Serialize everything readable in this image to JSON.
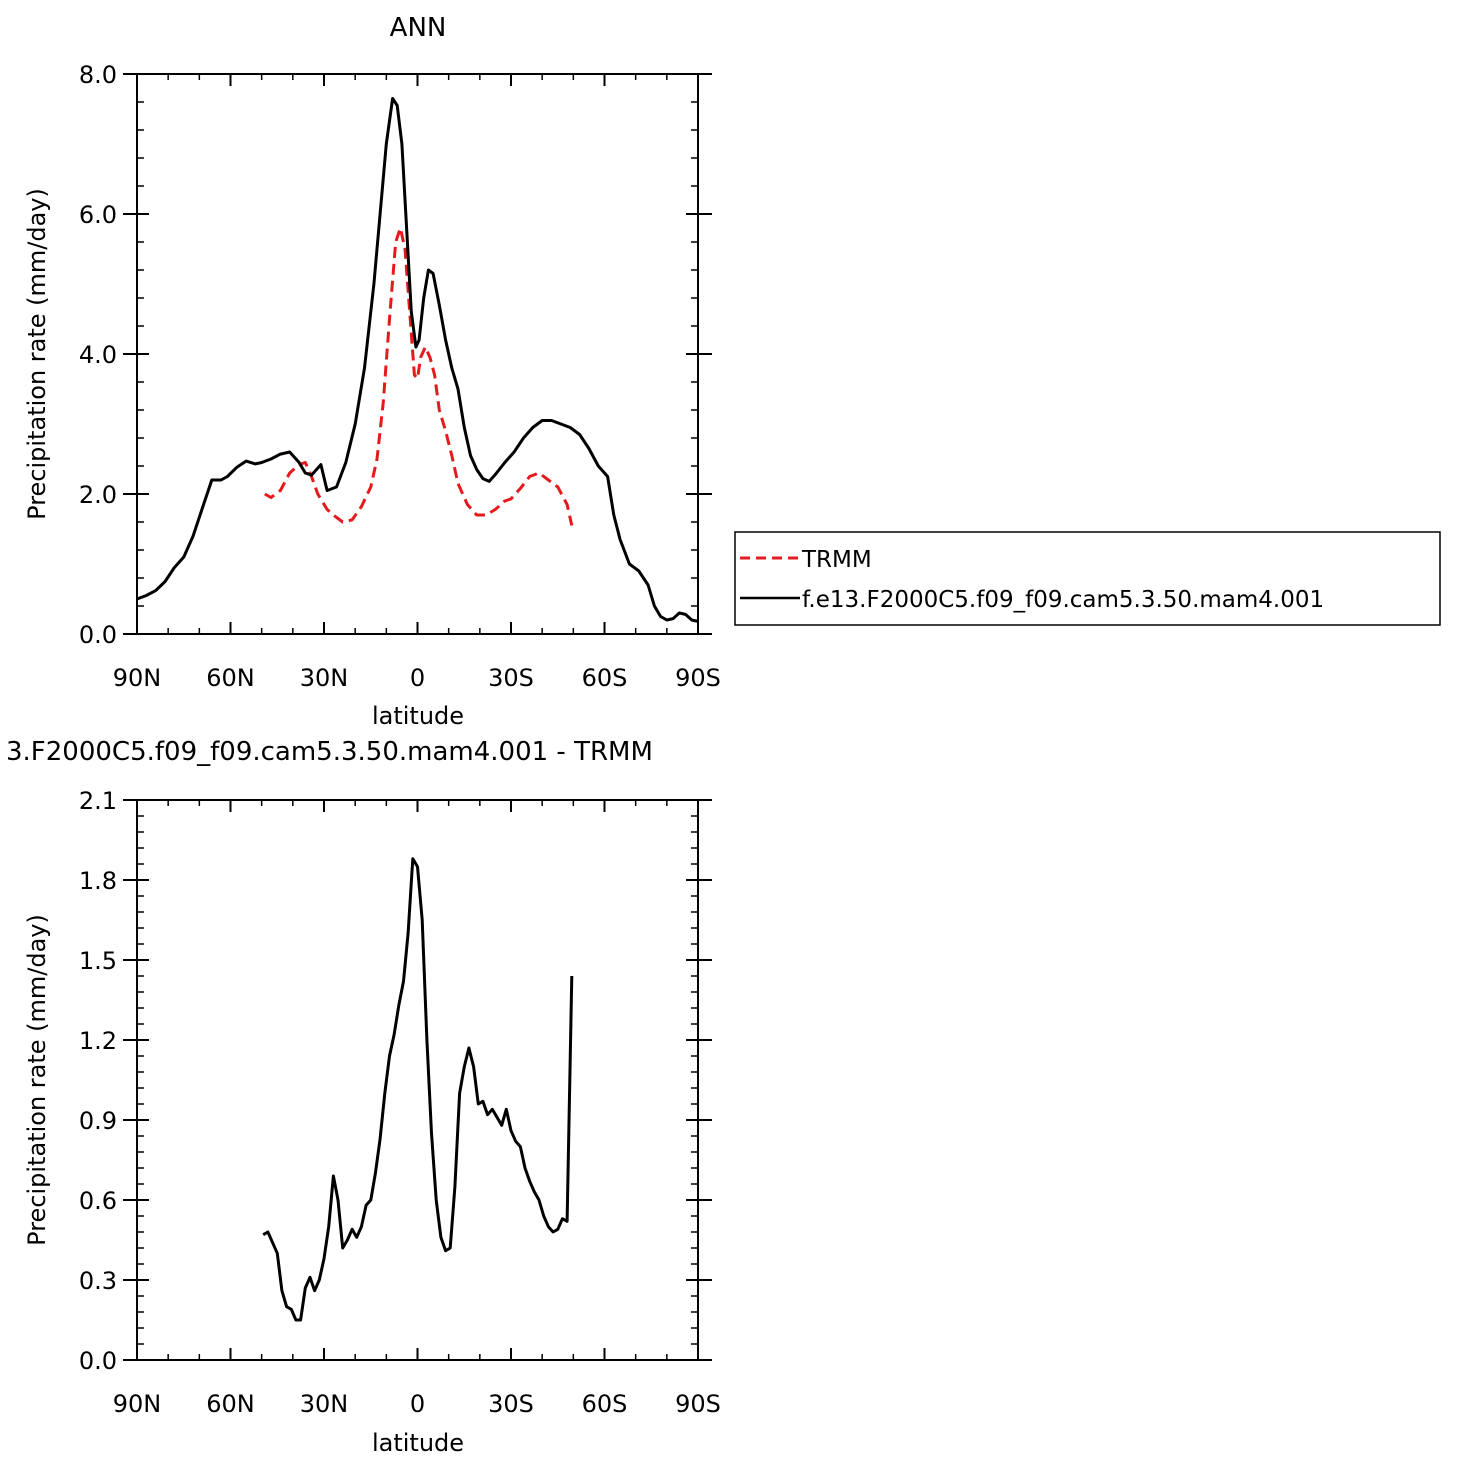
{
  "chart_data": [
    {
      "type": "line",
      "title": "ANN",
      "xlabel": "latitude",
      "ylabel": "Precipitation rate (mm/day)",
      "xlim": [
        90,
        -90
      ],
      "ylim": [
        0,
        8
      ],
      "xticks": [
        {
          "value": 90,
          "label": "90N"
        },
        {
          "value": 60,
          "label": "60N"
        },
        {
          "value": 30,
          "label": "30N"
        },
        {
          "value": 0,
          "label": "0"
        },
        {
          "value": -30,
          "label": "30S"
        },
        {
          "value": -60,
          "label": "60S"
        },
        {
          "value": -90,
          "label": "90S"
        }
      ],
      "yticks": [
        {
          "value": 0,
          "label": "0.0"
        },
        {
          "value": 2,
          "label": "2.0"
        },
        {
          "value": 4,
          "label": "4.0"
        },
        {
          "value": 6,
          "label": "6.0"
        },
        {
          "value": 8,
          "label": "8.0"
        }
      ],
      "legend_placement": "right",
      "series": [
        {
          "name": "TRMM",
          "color": "#e41a1c",
          "dash": "dashed",
          "x": [
            49,
            47,
            44,
            41,
            38,
            36,
            34,
            32,
            29,
            27,
            24,
            21,
            18,
            15,
            13,
            11,
            9,
            7,
            5.5,
            4,
            2.5,
            1,
            0,
            -1,
            -2.5,
            -4,
            -5.5,
            -7,
            -9,
            -11,
            -13,
            -16,
            -19,
            -22,
            -25,
            -28,
            -30,
            -33,
            -36,
            -39,
            -42,
            -45,
            -48,
            -49.5
          ],
          "values": [
            2.0,
            1.95,
            2.05,
            2.3,
            2.42,
            2.45,
            2.25,
            2.0,
            1.78,
            1.7,
            1.6,
            1.63,
            1.82,
            2.1,
            2.5,
            3.3,
            4.5,
            5.6,
            5.8,
            5.5,
            4.6,
            3.7,
            3.65,
            3.95,
            4.1,
            3.95,
            3.7,
            3.2,
            2.9,
            2.55,
            2.15,
            1.85,
            1.7,
            1.7,
            1.78,
            1.9,
            1.93,
            2.08,
            2.25,
            2.3,
            2.2,
            2.1,
            1.85,
            1.55
          ]
        },
        {
          "name": "f.e13.F2000C5.f09_f09.cam5.3.50.mam4.001",
          "color": "#000000",
          "dash": "solid",
          "x": [
            90,
            87,
            84,
            81,
            78,
            75,
            72,
            69,
            66,
            63,
            61,
            58,
            55,
            52,
            50,
            47,
            44,
            41,
            38,
            36,
            34,
            31,
            29,
            26,
            23,
            20,
            17,
            14,
            12,
            10,
            8,
            6.5,
            5,
            3.5,
            2,
            0.5,
            -0.5,
            -2,
            -3.5,
            -5,
            -7,
            -9,
            -11,
            -13,
            -15,
            -17,
            -19,
            -21,
            -23,
            -25,
            -28,
            -31,
            -34,
            -37,
            -40,
            -43,
            -46,
            -49,
            -52,
            -55,
            -58,
            -61,
            -63,
            -65,
            -68,
            -71,
            -74,
            -76,
            -78,
            -80,
            -82,
            -84,
            -86,
            -88,
            -90
          ],
          "values": [
            0.5,
            0.55,
            0.62,
            0.75,
            0.95,
            1.1,
            1.4,
            1.8,
            2.2,
            2.2,
            2.25,
            2.38,
            2.47,
            2.43,
            2.45,
            2.5,
            2.57,
            2.6,
            2.45,
            2.3,
            2.27,
            2.42,
            2.05,
            2.1,
            2.45,
            3.0,
            3.8,
            5.0,
            6.0,
            7.0,
            7.65,
            7.55,
            7.0,
            5.8,
            4.6,
            4.1,
            4.2,
            4.8,
            5.2,
            5.15,
            4.7,
            4.2,
            3.8,
            3.5,
            2.95,
            2.55,
            2.35,
            2.22,
            2.18,
            2.28,
            2.45,
            2.6,
            2.8,
            2.95,
            3.05,
            3.05,
            3.0,
            2.95,
            2.85,
            2.65,
            2.4,
            2.25,
            1.7,
            1.35,
            1.0,
            0.9,
            0.7,
            0.4,
            0.25,
            0.2,
            0.22,
            0.3,
            0.28,
            0.2,
            0.18
          ]
        }
      ]
    },
    {
      "type": "line",
      "title": "3.F2000C5.f09_f09.cam5.3.50.mam4.001 - TRMM",
      "xlabel": "latitude",
      "ylabel": "Precipitation rate (mm/day)",
      "xlim": [
        90,
        -90
      ],
      "ylim": [
        0,
        2.1
      ],
      "xticks": [
        {
          "value": 90,
          "label": "90N"
        },
        {
          "value": 60,
          "label": "60N"
        },
        {
          "value": 30,
          "label": "30N"
        },
        {
          "value": 0,
          "label": "0"
        },
        {
          "value": -30,
          "label": "30S"
        },
        {
          "value": -60,
          "label": "60S"
        },
        {
          "value": -90,
          "label": "90S"
        }
      ],
      "yticks": [
        {
          "value": 0,
          "label": "0.0"
        },
        {
          "value": 0.3,
          "label": "0.3"
        },
        {
          "value": 0.6,
          "label": "0.6"
        },
        {
          "value": 0.9,
          "label": "0.9"
        },
        {
          "value": 1.2,
          "label": "1.2"
        },
        {
          "value": 1.5,
          "label": "1.5"
        },
        {
          "value": 1.8,
          "label": "1.8"
        },
        {
          "value": 2.1,
          "label": "2.1"
        }
      ],
      "series": [
        {
          "color": "#000000",
          "dash": "solid",
          "x": [
            49.5,
            48,
            46.5,
            45,
            43.5,
            42,
            40.5,
            39,
            37.5,
            36,
            34.5,
            33,
            31.5,
            30,
            28.5,
            27,
            25.5,
            24,
            22.5,
            21,
            19.5,
            18,
            16.5,
            15,
            13.5,
            12,
            10.5,
            9,
            7.5,
            6,
            4.5,
            3,
            1.5,
            0,
            -1.5,
            -3,
            -4.5,
            -6,
            -7.5,
            -9,
            -10.5,
            -12,
            -13.5,
            -15,
            -16.5,
            -18,
            -19.5,
            -21,
            -22.5,
            -24,
            -25.5,
            -27,
            -28.5,
            -30,
            -31.5,
            -33,
            -34.5,
            -36,
            -37.5,
            -39,
            -40.5,
            -42,
            -43.5,
            -45,
            -46.5,
            -48,
            -49.5
          ],
          "values": [
            0.47,
            0.48,
            0.44,
            0.4,
            0.26,
            0.2,
            0.19,
            0.15,
            0.15,
            0.27,
            0.31,
            0.26,
            0.3,
            0.38,
            0.5,
            0.69,
            0.6,
            0.42,
            0.45,
            0.49,
            0.46,
            0.5,
            0.58,
            0.6,
            0.7,
            0.83,
            1.0,
            1.14,
            1.22,
            1.33,
            1.42,
            1.6,
            1.88,
            1.85,
            1.65,
            1.2,
            0.85,
            0.6,
            0.46,
            0.41,
            0.42,
            0.65,
            1.0,
            1.1,
            1.17,
            1.1,
            0.96,
            0.97,
            0.92,
            0.94,
            0.91,
            0.88,
            0.94,
            0.86,
            0.82,
            0.8,
            0.72,
            0.67,
            0.63,
            0.6,
            0.54,
            0.5,
            0.48,
            0.49,
            0.53,
            0.52,
            1.44
          ]
        }
      ]
    }
  ]
}
